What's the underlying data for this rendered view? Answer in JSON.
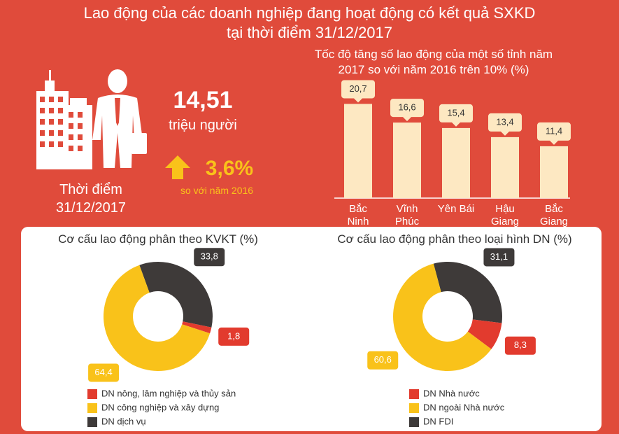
{
  "title": [
    "Lao động của các doanh nghiệp đang hoạt động có kết quả SXKD",
    "tại thời điểm 31/12/2017"
  ],
  "headline": {
    "value": "14,51",
    "unit": "triệu người",
    "growth": "3,6%",
    "growth_note": "so với năm 2016",
    "date_label": [
      "Thời điểm",
      "31/12/2017"
    ]
  },
  "chart_data": [
    {
      "type": "bar",
      "title": [
        "Tốc độ tăng số lao động của một số tỉnh năm",
        "2017 so với năm 2016 trên 10% (%)"
      ],
      "categories": [
        "Bắc Ninh",
        "Vĩnh Phúc",
        "Yên Bái",
        "Hậu Giang",
        "Bắc Giang"
      ],
      "values": [
        20.7,
        16.6,
        15.4,
        13.4,
        11.4
      ],
      "value_labels": [
        "20,7",
        "16,6",
        "15,4",
        "13,4",
        "11,4"
      ],
      "color": "#fde8c2"
    },
    {
      "type": "pie",
      "title": "Cơ cấu lao động phân theo KVKT (%)",
      "categories": [
        "DN nông, lâm nghiệp và thủy sản",
        "DN công nghiệp và xây dựng",
        "DN dịch vụ"
      ],
      "values": [
        1.8,
        64.4,
        33.8
      ],
      "value_labels": [
        "1,8",
        "64,4",
        "33,8"
      ],
      "colors": [
        "#e23b2e",
        "#f9c21a",
        "#3e3a39"
      ]
    },
    {
      "type": "pie",
      "title": "Cơ cấu lao động phân theo loại hình DN (%)",
      "categories": [
        "DN Nhà nước",
        "DN ngoài Nhà nước",
        "DN FDI"
      ],
      "values": [
        8.3,
        60.6,
        31.1
      ],
      "value_labels": [
        "8,3",
        "60,6",
        "31,1"
      ],
      "colors": [
        "#e23b2e",
        "#f9c21a",
        "#3e3a39"
      ]
    }
  ]
}
